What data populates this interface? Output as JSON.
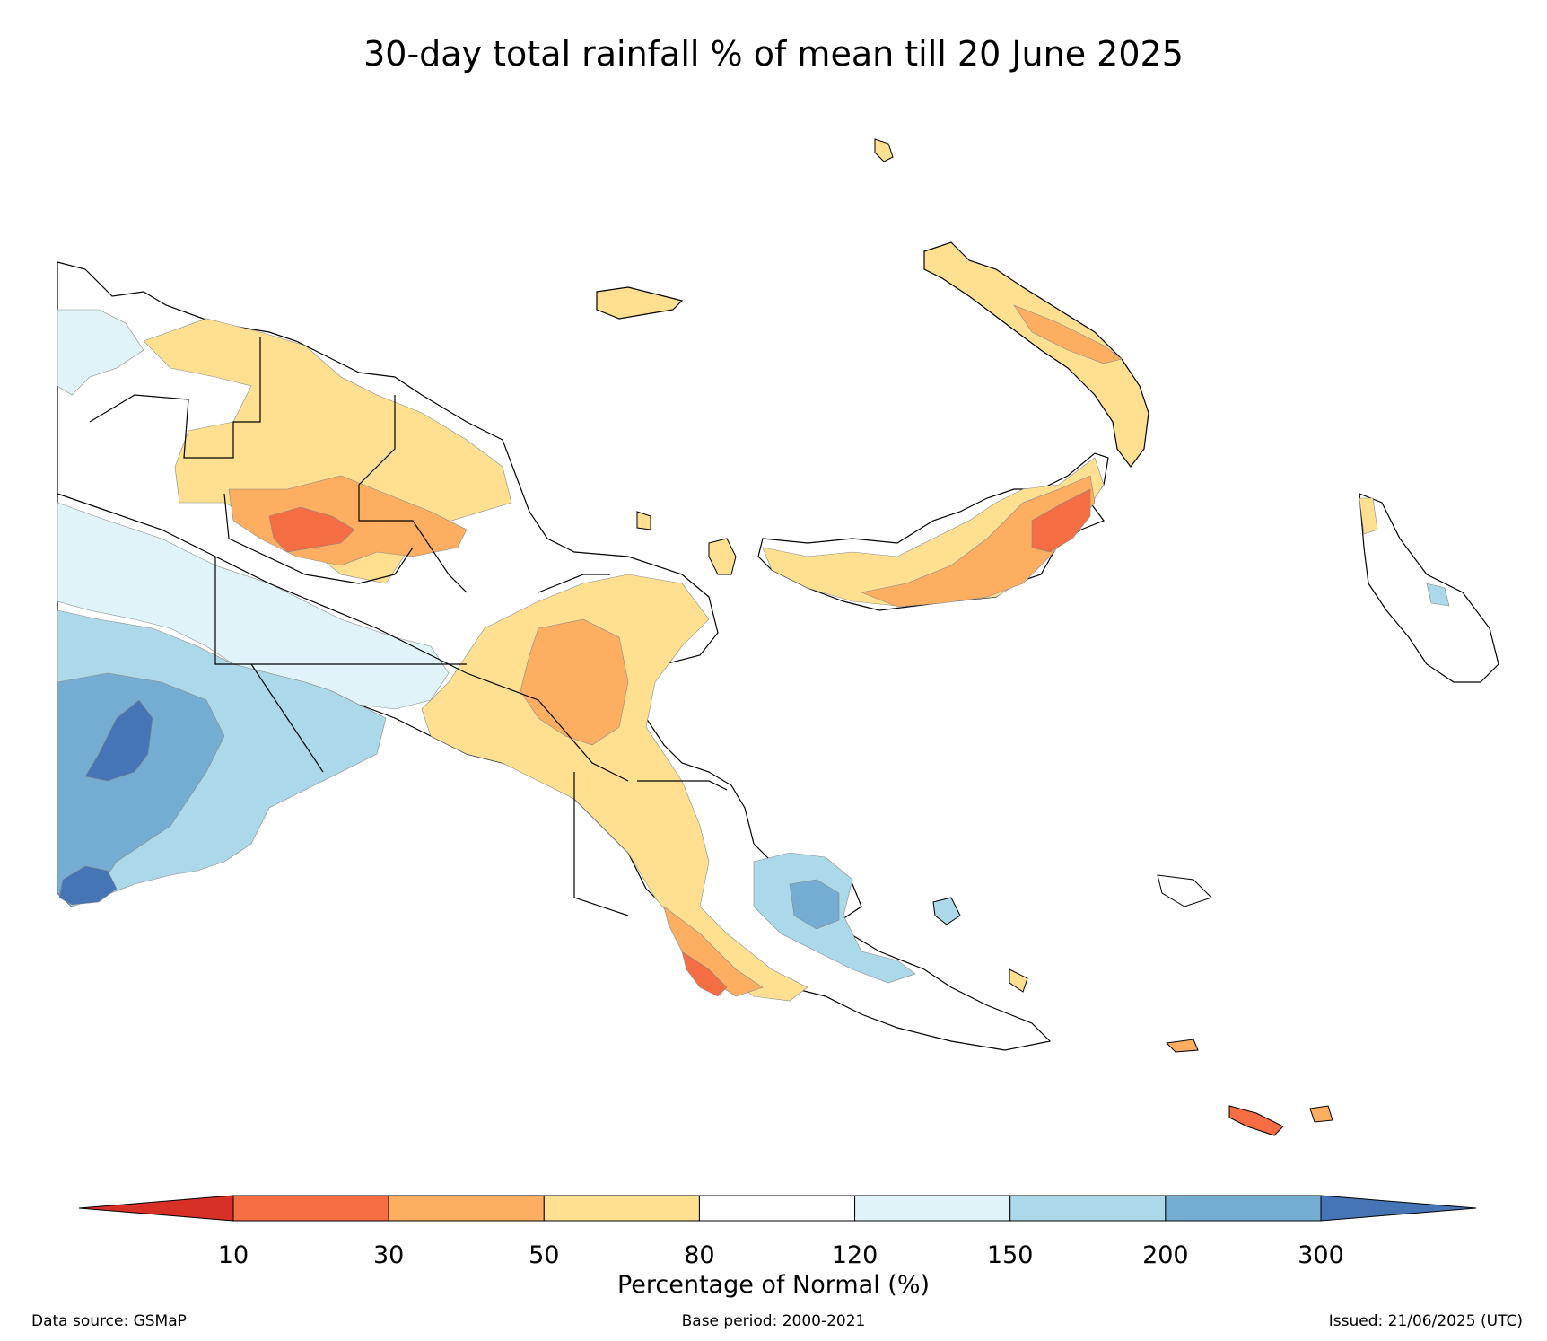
{
  "title": "30-day total rainfall % of mean till 20 June 2025",
  "colorbar": {
    "title": "Percentage of Normal (%)",
    "ticks": [
      "10",
      "30",
      "50",
      "80",
      "120",
      "150",
      "200",
      "300"
    ],
    "colors": {
      "below_10": "#d73027",
      "10_30": "#f46d43",
      "30_50": "#fdae61",
      "50_80": "#fee090",
      "80_120": "#ffffff",
      "120_150": "#e0f3f8",
      "150_200": "#abd9e9",
      "200_300": "#74add1",
      "above_300": "#4575b4"
    }
  },
  "footer": {
    "source": "Data source: GSMaP",
    "base_period": "Base period: 2000-2021",
    "issued": "Issued: 21/06/2025 (UTC)"
  }
}
